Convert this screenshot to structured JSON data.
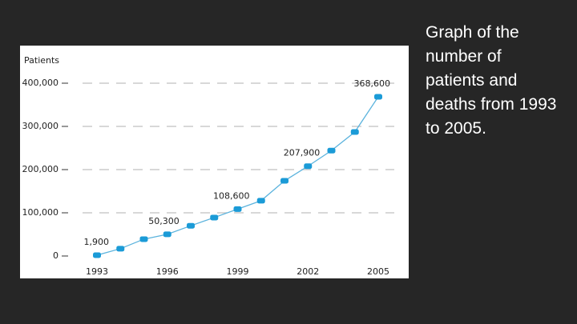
{
  "chart_data": {
    "type": "line",
    "y_label": "Patients",
    "x": [
      1993,
      1994,
      1995,
      1996,
      1997,
      1998,
      1999,
      2000,
      2001,
      2002,
      2003,
      2004,
      2005
    ],
    "values": [
      1900,
      17000,
      39000,
      50300,
      70000,
      89000,
      108600,
      128000,
      174000,
      207900,
      244000,
      287000,
      368600
    ],
    "value_labels": [
      "1,900",
      null,
      null,
      "50,300",
      null,
      null,
      "108,600",
      null,
      null,
      "207,900",
      null,
      null,
      "368,600"
    ],
    "color": "#1b9bd7",
    "xlim": [
      1993,
      2005
    ],
    "xticks": [
      1993,
      1996,
      1999,
      2002,
      2005
    ],
    "ylim": [
      0,
      400000
    ],
    "yticks": [
      0,
      {
        "value": 100000,
        "label": "100,000"
      },
      {
        "value": 200000,
        "label": "200,000"
      },
      {
        "value": 300000,
        "label": "300,000"
      },
      {
        "value": 400000,
        "label": "400,000"
      }
    ],
    "grid": true
  },
  "caption": "Graph of the number of patients and deaths from 1993 to 2005."
}
